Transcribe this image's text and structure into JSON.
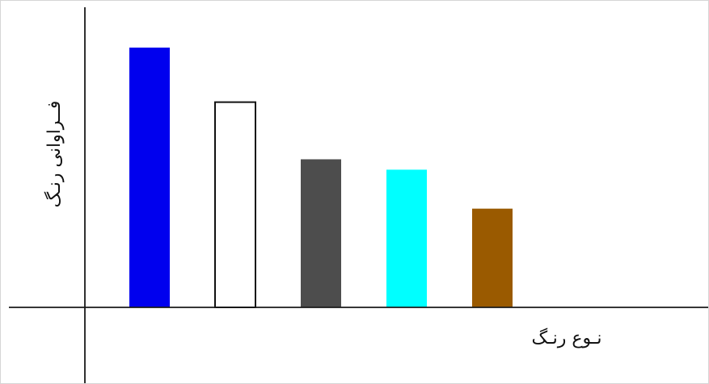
{
  "chart_data": {
    "type": "bar",
    "xlabel": "نـوع رنـگ",
    "ylabel": "فــراوانی رنـگ",
    "categories": [
      "",
      "",
      "",
      "",
      ""
    ],
    "values": [
      100,
      79,
      57,
      53,
      38
    ],
    "ylim": [
      0,
      100
    ],
    "grid": false,
    "legend": "none",
    "bar_colors": [
      "#0000ee",
      "#ffffff",
      "#4d4d4d",
      "#00ffff",
      "#9a5a00"
    ]
  }
}
